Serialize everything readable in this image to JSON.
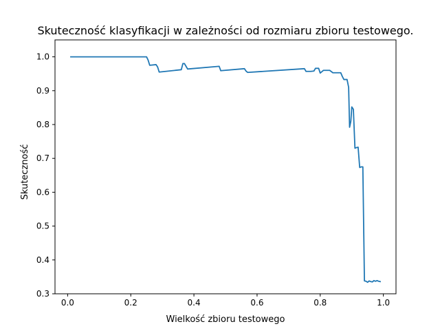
{
  "chart_data": {
    "type": "line",
    "title": "Skuteczność klasyfikacji w zależności od rozmiaru zbioru testowego.",
    "xlabel": "Wielkość zbioru testowego",
    "ylabel": "Skuteczność",
    "xlim": [
      -0.04,
      1.04
    ],
    "ylim": [
      0.3,
      1.05
    ],
    "x_ticks": [
      0.0,
      0.2,
      0.4,
      0.6,
      0.8,
      1.0
    ],
    "x_tick_labels": [
      "0.0",
      "0.2",
      "0.4",
      "0.6",
      "0.8",
      "1.0"
    ],
    "y_ticks": [
      0.3,
      0.4,
      0.5,
      0.6,
      0.7,
      0.8,
      0.9,
      1.0
    ],
    "y_tick_labels": [
      "0.3",
      "0.4",
      "0.5",
      "0.6",
      "0.7",
      "0.8",
      "0.9",
      "1.0"
    ],
    "grid": false,
    "line_color": "#1f77b4",
    "series": [
      {
        "x": [
          0.01,
          0.25,
          0.255,
          0.26,
          0.28,
          0.285,
          0.29,
          0.36,
          0.365,
          0.37,
          0.375,
          0.38,
          0.48,
          0.485,
          0.56,
          0.565,
          0.57,
          0.75,
          0.755,
          0.77,
          0.78,
          0.785,
          0.79,
          0.795,
          0.8,
          0.81,
          0.815,
          0.82,
          0.83,
          0.84,
          0.845,
          0.86,
          0.865,
          0.87,
          0.875,
          0.88,
          0.885,
          0.89,
          0.893,
          0.897,
          0.9,
          0.905,
          0.91,
          0.915,
          0.92,
          0.925,
          0.93,
          0.935,
          0.94,
          0.945,
          0.95,
          0.955,
          0.96,
          0.965,
          0.97,
          0.975,
          0.98,
          0.985,
          0.99
        ],
        "y": [
          1.0,
          1.0,
          0.99,
          0.975,
          0.977,
          0.97,
          0.955,
          0.962,
          0.98,
          0.98,
          0.972,
          0.964,
          0.972,
          0.959,
          0.965,
          0.958,
          0.954,
          0.965,
          0.957,
          0.957,
          0.958,
          0.966,
          0.966,
          0.966,
          0.952,
          0.96,
          0.96,
          0.96,
          0.96,
          0.953,
          0.953,
          0.953,
          0.953,
          0.942,
          0.933,
          0.933,
          0.933,
          0.91,
          0.792,
          0.81,
          0.852,
          0.845,
          0.73,
          0.732,
          0.733,
          0.673,
          0.675,
          0.675,
          0.338,
          0.337,
          0.334,
          0.338,
          0.336,
          0.335,
          0.339,
          0.337,
          0.339,
          0.337,
          0.336
        ]
      }
    ]
  }
}
